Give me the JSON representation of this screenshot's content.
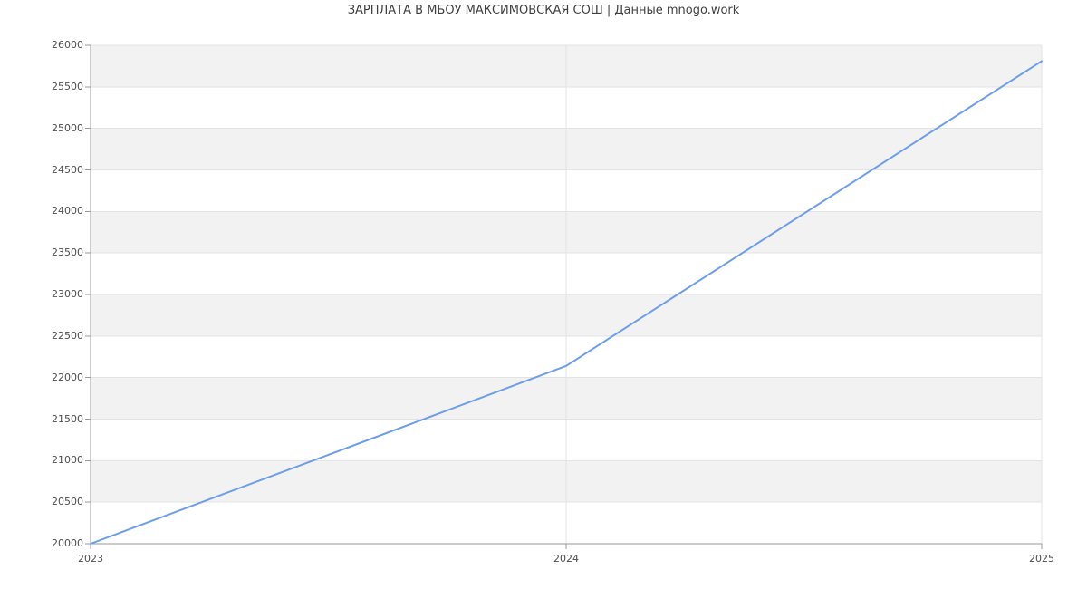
{
  "title": "ЗАРПЛАТА В МБОУ МАКСИМОВСКАЯ СОШ | Данные mnogo.work",
  "colors": {
    "line": "#6d9eeb",
    "band_gray": "#f2f2f2",
    "band_white": "#ffffff",
    "gridline": "#e3e3e3",
    "axis": "#999999",
    "tick_label": "#4d4d4d",
    "title": "#3f3f3f",
    "background": "#ffffff"
  },
  "chart_data": {
    "type": "line",
    "title": "ЗАРПЛАТА В МБОУ МАКСИМОВСКАЯ СОШ | Данные mnogo.work",
    "x": [
      "2023",
      "2024",
      "2025"
    ],
    "values": [
      20000,
      22140,
      25810
    ],
    "xlabel": "",
    "ylabel": "",
    "ylim": [
      20000,
      26000
    ],
    "ytick_step": 500,
    "yticks": [
      20000,
      20500,
      21000,
      21500,
      22000,
      22500,
      23000,
      23500,
      24000,
      24500,
      25000,
      25500,
      26000
    ],
    "xticks": [
      "2023",
      "2024",
      "2025"
    ],
    "grid": true,
    "legend": false,
    "markers": false,
    "plot_bands": "alternating horizontal 500-unit bands, gray topmost (26000-25500), then white, repeating"
  }
}
